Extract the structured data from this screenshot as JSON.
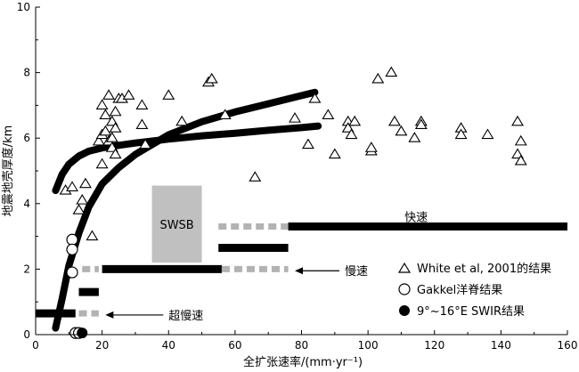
{
  "chart_data": {
    "type": "scatter",
    "xlabel": "全扩张速率/(mm·yr⁻¹)",
    "ylabel": "地震地壳厚度/km",
    "xlim": [
      0,
      160
    ],
    "ylim": [
      0,
      10
    ],
    "xticks": [
      "0",
      "20",
      "40",
      "60",
      "80",
      "100",
      "120",
      "140",
      "160"
    ],
    "yticks": [
      "0",
      "2",
      "4",
      "6",
      "8",
      "10"
    ],
    "grid": false,
    "legend_position": "bottom-right",
    "colors": {
      "black": "#000000",
      "gray": "#b3b3b3",
      "swsb_box": "#c0c0c0"
    },
    "series": [
      {
        "name": "White et al, 2001的结果",
        "marker": "triangle-open",
        "x": [
          9,
          11,
          13,
          14,
          15,
          17,
          19,
          20,
          20,
          20,
          21,
          21,
          22,
          22,
          23,
          23,
          23,
          24,
          24,
          24,
          25,
          26,
          28,
          32,
          32,
          33,
          40,
          44,
          52,
          53,
          57,
          66,
          78,
          82,
          84,
          88,
          90,
          94,
          94,
          95,
          96,
          101,
          101,
          103,
          107,
          108,
          110,
          114,
          116,
          116,
          128,
          128,
          136,
          145,
          145,
          146,
          146
        ],
        "y": [
          4.4,
          4.5,
          3.8,
          4.1,
          4.6,
          3.0,
          5.9,
          6.1,
          7.0,
          5.2,
          6.7,
          6.2,
          7.3,
          5.9,
          6.5,
          6.0,
          5.7,
          6.8,
          6.3,
          5.5,
          7.2,
          7.2,
          7.3,
          7.0,
          6.4,
          5.8,
          7.3,
          6.5,
          7.7,
          7.8,
          6.7,
          4.8,
          6.6,
          5.8,
          7.2,
          6.7,
          5.5,
          6.5,
          6.3,
          6.1,
          6.5,
          5.6,
          5.7,
          7.8,
          8.0,
          6.5,
          6.2,
          6.0,
          6.5,
          6.4,
          6.3,
          6.1,
          6.1,
          6.5,
          5.5,
          5.3,
          5.9
        ]
      },
      {
        "name": "Gakkel洋脊结果",
        "marker": "circle-open",
        "x": [
          11,
          11,
          11,
          12,
          13
        ],
        "y": [
          2.9,
          2.6,
          1.9,
          0.05,
          0.05
        ]
      },
      {
        "name": "9°~16°E SWIR结果",
        "marker": "circle-filled",
        "x": [
          14
        ],
        "y": [
          0.05
        ]
      }
    ],
    "curves": [
      {
        "x": [
          6,
          8,
          10,
          13,
          16,
          20,
          25,
          30,
          40,
          50,
          60,
          70,
          80,
          84
        ],
        "y": [
          0.2,
          1.1,
          2.1,
          3.1,
          3.9,
          4.6,
          5.1,
          5.5,
          6.1,
          6.5,
          6.8,
          7.05,
          7.3,
          7.4
        ]
      },
      {
        "x": [
          6,
          8,
          10,
          13,
          16,
          20,
          25,
          30,
          40,
          50,
          60,
          70,
          80,
          85
        ],
        "y": [
          4.4,
          4.9,
          5.2,
          5.45,
          5.6,
          5.7,
          5.78,
          5.85,
          5.97,
          6.07,
          6.15,
          6.24,
          6.32,
          6.37
        ]
      }
    ],
    "bands": [
      {
        "y": 0.65,
        "segments": [
          {
            "x": [
              0,
              12
            ],
            "style": "solid-black"
          },
          {
            "x": [
              13,
              19
            ],
            "style": "dashed-gray"
          }
        ]
      },
      {
        "y": 1.3,
        "segments": [
          {
            "x": [
              13,
              19
            ],
            "style": "solid-black"
          }
        ]
      },
      {
        "y": 2.0,
        "segments": [
          {
            "x": [
              14,
              19
            ],
            "style": "dashed-gray"
          },
          {
            "x": [
              20,
              56
            ],
            "style": "solid-black"
          },
          {
            "x": [
              56,
              76
            ],
            "style": "dashed-gray"
          }
        ]
      },
      {
        "y": 2.65,
        "segments": [
          {
            "x": [
              55,
              76
            ],
            "style": "solid-black"
          }
        ]
      },
      {
        "y": 3.3,
        "segments": [
          {
            "x": [
              55,
              76
            ],
            "style": "dashed-gray"
          },
          {
            "x": [
              76,
              160
            ],
            "style": "solid-black"
          }
        ]
      }
    ],
    "swsb_box": {
      "x": [
        35,
        50
      ],
      "y": [
        2.2,
        4.55
      ],
      "label": "SWSB"
    },
    "annotations": [
      {
        "text": "快速",
        "x": 111,
        "y": 3.6
      },
      {
        "text": "慢速",
        "x": 93,
        "y": 1.95,
        "arrow_to_x": 78
      },
      {
        "text": "超慢速",
        "x": 40,
        "y": 0.6,
        "arrow_to_x": 21
      }
    ]
  }
}
